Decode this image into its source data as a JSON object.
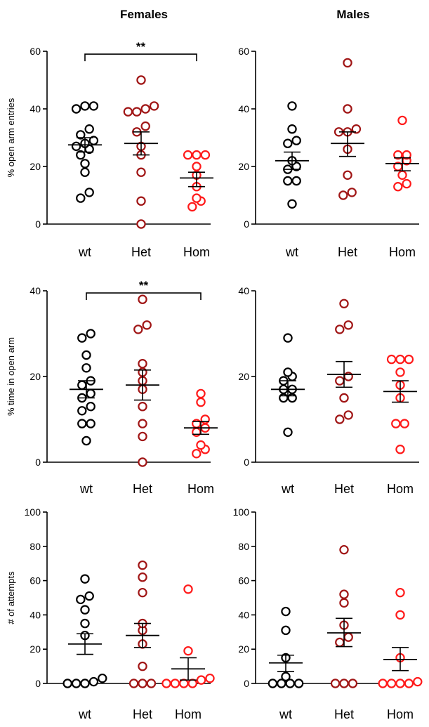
{
  "column_titles": [
    "Females",
    "Males"
  ],
  "colors": {
    "wt": "#000000",
    "Het": "#a01515",
    "Hom": "#ff1a1a"
  },
  "chart_data": [
    {
      "type": "scatter",
      "panel": "females-open-arm-entries",
      "ylabel": "% open arm entries",
      "ylim": [
        0,
        60
      ],
      "yticks": [
        0,
        20,
        40,
        60
      ],
      "categories": [
        "wt",
        "Het",
        "Hom"
      ],
      "series": [
        {
          "category": "wt",
          "values": [
            9,
            11,
            18,
            21,
            24,
            26,
            27,
            28,
            29,
            31,
            33,
            40,
            41,
            41
          ],
          "mean": 27.5,
          "sem_bar": [
            25,
            30
          ]
        },
        {
          "category": "Het",
          "values": [
            0,
            8,
            18,
            24,
            27,
            32,
            34,
            39,
            39,
            40,
            41,
            50
          ],
          "mean": 28,
          "sem_bar": [
            24,
            32
          ]
        },
        {
          "category": "Hom",
          "values": [
            6,
            8,
            9,
            13,
            17,
            20,
            24,
            24,
            24
          ],
          "mean": 16,
          "sem_bar": [
            13,
            18
          ]
        }
      ],
      "significance": {
        "from": "wt",
        "to": "Hom",
        "label": "**",
        "y": 59
      }
    },
    {
      "type": "scatter",
      "panel": "males-open-arm-entries",
      "ylabel": "",
      "ylim": [
        0,
        60
      ],
      "yticks": [
        0,
        20,
        40,
        60
      ],
      "categories": [
        "wt",
        "Het",
        "Hom"
      ],
      "series": [
        {
          "category": "wt",
          "values": [
            7,
            15,
            15,
            19,
            20,
            22,
            28,
            29,
            33,
            41
          ],
          "mean": 22,
          "sem_bar": [
            19,
            25
          ]
        },
        {
          "category": "Het",
          "values": [
            10,
            11,
            17,
            26,
            32,
            32,
            33,
            40,
            56
          ],
          "mean": 28,
          "sem_bar": [
            23.5,
            32
          ]
        },
        {
          "category": "Hom",
          "values": [
            13,
            14,
            17,
            20,
            22,
            24,
            24,
            36
          ],
          "mean": 21,
          "sem_bar": [
            18.5,
            23
          ]
        }
      ]
    },
    {
      "type": "scatter",
      "panel": "females-time-in-open-arm",
      "ylabel": "% time in open arm",
      "ylim": [
        0,
        40
      ],
      "yticks": [
        0,
        20,
        40
      ],
      "categories": [
        "wt",
        "Het",
        "Hom"
      ],
      "series": [
        {
          "category": "wt",
          "values": [
            5,
            9,
            9,
            12,
            13,
            15,
            16,
            18,
            19,
            22,
            25,
            29,
            30
          ],
          "mean": 17,
          "sem_bar": [
            15,
            19
          ]
        },
        {
          "category": "Het",
          "values": [
            0,
            6,
            9,
            13,
            17,
            19,
            21,
            23,
            31,
            32,
            38
          ],
          "mean": 18,
          "sem_bar": [
            14.5,
            21.5
          ]
        },
        {
          "category": "Hom",
          "values": [
            2,
            3,
            4,
            7,
            8,
            9,
            10,
            14,
            16
          ],
          "mean": 8,
          "sem_bar": [
            6.5,
            9.5
          ]
        }
      ],
      "significance": {
        "from": "wt",
        "to": "Hom",
        "label": "**",
        "y": 39.5
      }
    },
    {
      "type": "scatter",
      "panel": "males-time-in-open-arm",
      "ylabel": "",
      "ylim": [
        0,
        40
      ],
      "yticks": [
        0,
        20,
        40
      ],
      "categories": [
        "wt",
        "Het",
        "Hom"
      ],
      "series": [
        {
          "category": "wt",
          "values": [
            7,
            15,
            15,
            17,
            17,
            19,
            20,
            21,
            29
          ],
          "mean": 17,
          "sem_bar": [
            15.5,
            19
          ]
        },
        {
          "category": "Het",
          "values": [
            10,
            11,
            15,
            19,
            20,
            31,
            32,
            37
          ],
          "mean": 20.5,
          "sem_bar": [
            17.5,
            23.5
          ]
        },
        {
          "category": "Hom",
          "values": [
            3,
            9,
            9,
            15,
            18,
            21,
            24,
            24,
            24
          ],
          "mean": 16.5,
          "sem_bar": [
            14,
            19
          ]
        }
      ]
    },
    {
      "type": "scatter",
      "panel": "females-attempts",
      "ylabel": "# of attempts",
      "ylim": [
        0,
        100
      ],
      "yticks": [
        0,
        20,
        40,
        60,
        80,
        100
      ],
      "categories": [
        "wt",
        "Het",
        "Hom"
      ],
      "series": [
        {
          "category": "wt",
          "values": [
            0,
            0,
            0,
            1,
            3,
            28,
            35,
            43,
            49,
            51,
            61
          ],
          "mean": 23,
          "sem_bar": [
            17,
            29
          ]
        },
        {
          "category": "Het",
          "values": [
            0,
            0,
            0,
            10,
            23,
            31,
            35,
            53,
            62,
            69
          ],
          "mean": 28,
          "sem_bar": [
            21,
            35
          ]
        },
        {
          "category": "Hom",
          "values": [
            0,
            0,
            0,
            0,
            2,
            3,
            19,
            55
          ],
          "mean": 8.5,
          "sem_bar": [
            2,
            15
          ]
        }
      ]
    },
    {
      "type": "scatter",
      "panel": "males-attempts",
      "ylabel": "",
      "ylim": [
        0,
        100
      ],
      "yticks": [
        0,
        20,
        40,
        60,
        80,
        100
      ],
      "categories": [
        "wt",
        "Het",
        "Hom"
      ],
      "series": [
        {
          "category": "wt",
          "values": [
            0,
            0,
            0,
            0,
            4,
            15,
            31,
            42
          ],
          "mean": 12,
          "sem_bar": [
            7,
            16.5
          ]
        },
        {
          "category": "Het",
          "values": [
            0,
            0,
            0,
            24,
            27,
            34,
            47,
            52,
            78
          ],
          "mean": 29.5,
          "sem_bar": [
            21.5,
            38
          ]
        },
        {
          "category": "Hom",
          "values": [
            0,
            0,
            0,
            0,
            1,
            15,
            40,
            53
          ],
          "mean": 14,
          "sem_bar": [
            7.5,
            21
          ]
        }
      ]
    }
  ]
}
